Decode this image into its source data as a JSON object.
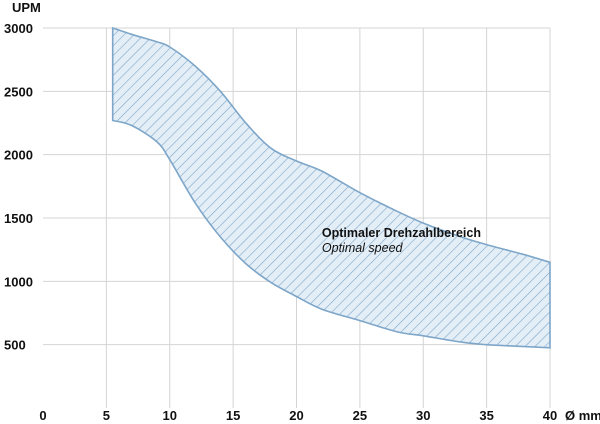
{
  "chart_data": {
    "type": "area",
    "xlabel": "Ø mm",
    "ylabel": "UPM",
    "xlim": [
      0,
      40
    ],
    "ylim": [
      0,
      3000
    ],
    "x_ticks": [
      0,
      5,
      10,
      15,
      20,
      25,
      30,
      35,
      40
    ],
    "y_ticks": [
      500,
      1000,
      1500,
      2000,
      2500,
      3000
    ],
    "grid": true,
    "colors": {
      "band_stroke": "#7ea6c9",
      "band_fill": "#e4eef6",
      "hatch": "#7ea6c9",
      "grid": "#d4d4d4"
    },
    "series": [
      {
        "x": [
          5.5,
          7,
          9,
          10,
          12,
          14,
          16,
          18,
          20,
          22,
          25,
          28,
          30,
          33,
          35,
          38,
          40
        ],
        "upper": [
          3000,
          2950,
          2890,
          2850,
          2700,
          2500,
          2250,
          2050,
          1950,
          1870,
          1700,
          1550,
          1460,
          1350,
          1290,
          1210,
          1150
        ],
        "lower": [
          2270,
          2230,
          2100,
          1960,
          1620,
          1350,
          1140,
          990,
          880,
          780,
          690,
          600,
          570,
          520,
          500,
          485,
          475
        ]
      }
    ],
    "annotations": [
      {
        "text": "Optimaler Drehzahlbereich",
        "style": "bold",
        "x": 25,
        "y": 1350
      },
      {
        "text": "Optimal speed",
        "style": "italic",
        "x": 25,
        "y": 1230
      }
    ]
  }
}
